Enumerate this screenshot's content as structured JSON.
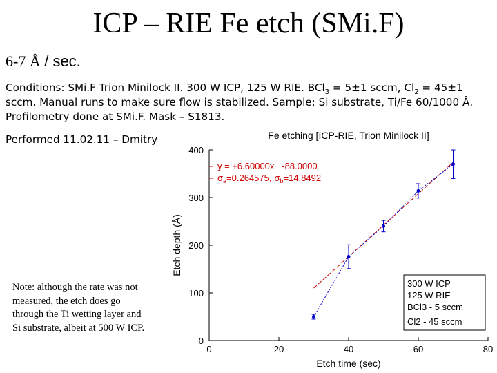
{
  "slide": {
    "title": "ICP – RIE Fe etch (SMi.F)",
    "rate_value": "6-7 Å",
    "rate_unit": "/ sec.",
    "conditions": {
      "p1": "Conditions: SMi.F Trion Minilock II. 300 W ICP, 125 W RIE. BCl",
      "s1": "3",
      "p2": " = 5±1 sccm, Cl",
      "s2": "2",
      "p3": " = 45±1 sccm. Manual runs to make sure flow is stabilized. Sample: Si substrate, Ti/Fe 60/1000 Å. Profilometry done at SMi.F. Mask – S1813."
    },
    "performed": "Performed 11.02.11 – Dmitry",
    "note": "Note: although the rate was not measured, the etch does go through the Ti wetting layer and Si substrate, albeit at 500 W ICP."
  },
  "chart_data": {
    "type": "scatter",
    "title": "Fe etching [ICP-RIE, Trion Minilock II]",
    "xlabel": "Etch time (sec)",
    "ylabel": "Etch depth (Å)",
    "xlim": [
      0,
      80
    ],
    "ylim": [
      0,
      400
    ],
    "xticks": [
      0,
      20,
      40,
      60,
      80
    ],
    "yticks": [
      0,
      100,
      200,
      300,
      400
    ],
    "points": [
      {
        "x": 30,
        "y": 50,
        "err": 5
      },
      {
        "x": 40,
        "y": 176,
        "err": 25
      },
      {
        "x": 50,
        "y": 240,
        "err": 12
      },
      {
        "x": 60,
        "y": 314,
        "err": 15
      },
      {
        "x": 70,
        "y": 370,
        "err": 30
      }
    ],
    "fit": {
      "slope": 6.6,
      "intercept": -88,
      "x_range": [
        30,
        70
      ],
      "equation": "y = +6.60000x   -88.0000",
      "sigma_a_label": "a",
      "sigma_a_value": "=0.264575,",
      "sigma_b_label": "b",
      "sigma_b_value": "=14.8492",
      "color": "#cc0000"
    },
    "series_color": "#0000cc",
    "legend": [
      "300 W ICP",
      "125 W RIE",
      "BCl3 - 5 sccm",
      "Cl2 - 45 sccm"
    ],
    "legend_position": "bottom-right",
    "grid": false
  }
}
